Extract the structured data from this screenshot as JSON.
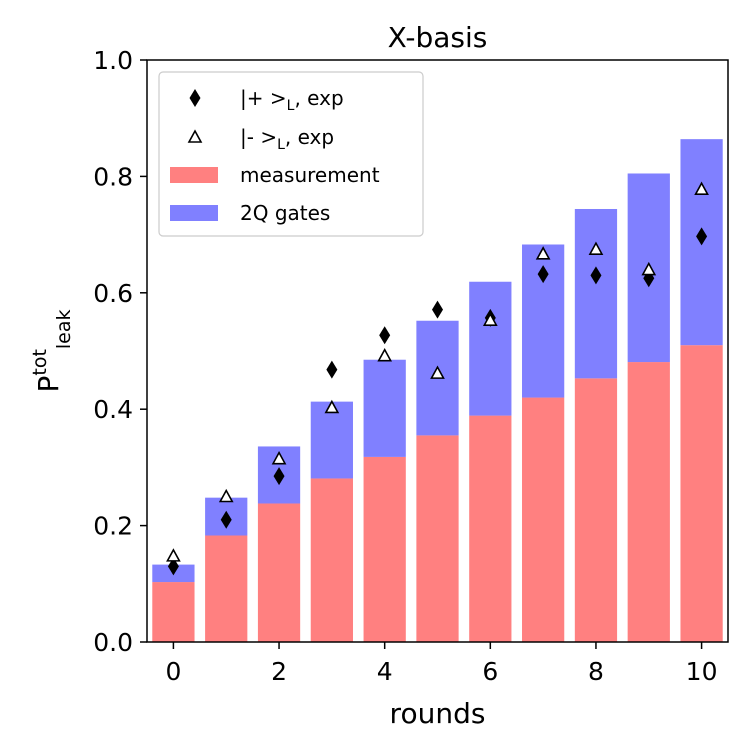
{
  "chart_data": {
    "type": "bar",
    "stacked": true,
    "title": "X-basis",
    "xlabel": "rounds",
    "ylabel": {
      "base": "P",
      "sup": "tot",
      "sub": "leak"
    },
    "xlim": [
      -0.5,
      10.5
    ],
    "ylim": [
      0.0,
      1.0
    ],
    "xticks": [
      0,
      2,
      4,
      6,
      8,
      10
    ],
    "yticks": [
      "0.0",
      "0.2",
      "0.4",
      "0.6",
      "0.8",
      "1.0"
    ],
    "rounds": [
      0,
      1,
      2,
      3,
      4,
      5,
      6,
      7,
      8,
      9,
      10
    ],
    "series": [
      {
        "name": "measurement",
        "kind": "bar",
        "color": "#ff8080",
        "values": [
          0.103,
          0.183,
          0.238,
          0.281,
          0.318,
          0.355,
          0.389,
          0.42,
          0.453,
          0.481,
          0.51
        ]
      },
      {
        "name": "2Q gates",
        "kind": "bar",
        "color": "#8080ff",
        "values": [
          0.03,
          0.065,
          0.098,
          0.132,
          0.167,
          0.197,
          0.23,
          0.263,
          0.291,
          0.324,
          0.354
        ]
      },
      {
        "name": "|+ >_L, exp",
        "kind": "marker",
        "marker": "diamond",
        "color": "#000000",
        "values": [
          0.13,
          0.21,
          0.285,
          0.468,
          0.527,
          0.571,
          0.557,
          0.632,
          0.63,
          0.625,
          0.697
        ]
      },
      {
        "name": "|- >_L, exp",
        "kind": "marker",
        "marker": "triangle-open",
        "color": "#000000",
        "values": [
          0.148,
          0.25,
          0.315,
          0.403,
          0.492,
          0.462,
          0.553,
          0.667,
          0.675,
          0.64,
          0.778
        ]
      }
    ],
    "legend": {
      "position": "top-left",
      "entries": [
        {
          "label_main": "|+ >",
          "label_sub": "L",
          "label_tail": ", exp"
        },
        {
          "label_main": "|- >",
          "label_sub": "L",
          "label_tail": ", exp"
        },
        {
          "label_main": "measurement"
        },
        {
          "label_main": "2Q gates"
        }
      ]
    }
  }
}
